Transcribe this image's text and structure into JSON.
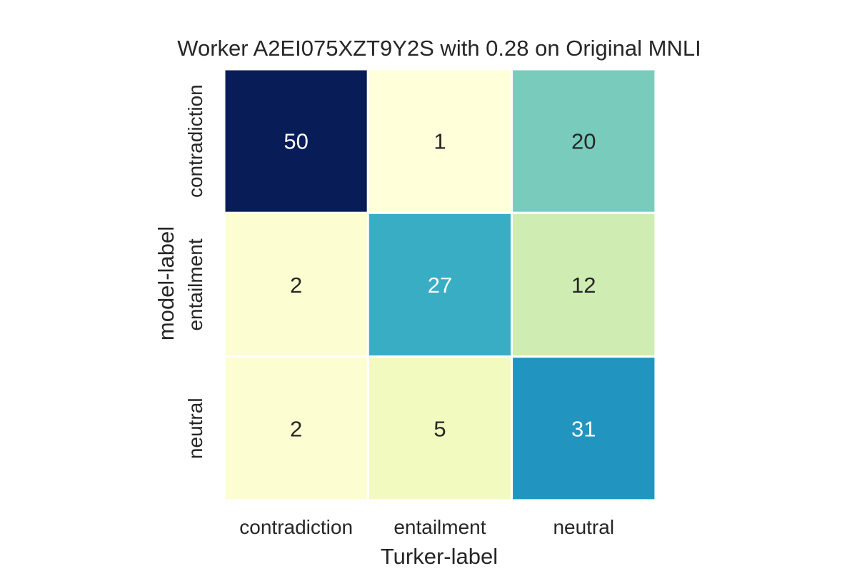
{
  "chart_data": {
    "type": "heatmap",
    "title": "Worker A2EI075XZT9Y2S with 0.28 on Original MNLI",
    "xlabel": "Turker-label",
    "ylabel": "model-label",
    "x_categories": [
      "contradiction",
      "entailment",
      "neutral"
    ],
    "y_categories": [
      "contradiction",
      "entailment",
      "neutral"
    ],
    "values": [
      [
        50,
        1,
        20
      ],
      [
        2,
        27,
        12
      ],
      [
        2,
        5,
        31
      ]
    ],
    "colormap": "YlGnBu",
    "value_range": [
      1,
      50
    ],
    "colorbar": false
  }
}
